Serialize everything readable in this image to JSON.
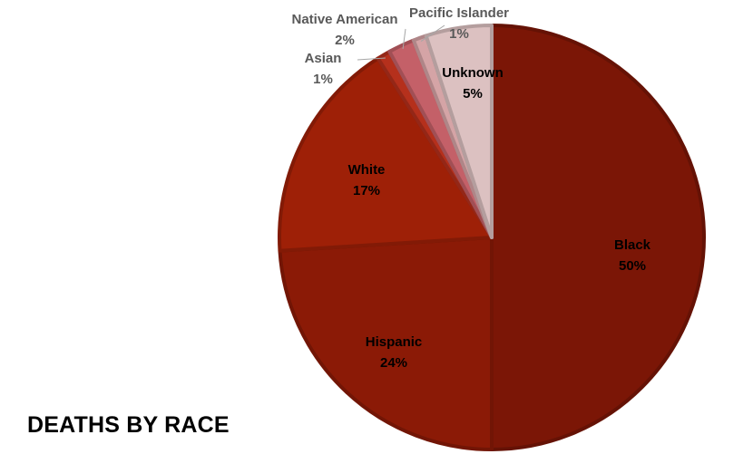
{
  "chart_data": {
    "type": "pie",
    "title": "DEATHS BY RACE",
    "slices": [
      {
        "label": "Black",
        "value": 50,
        "display": "50%",
        "color": "#7b1606"
      },
      {
        "label": "Hispanic",
        "value": 24,
        "display": "24%",
        "color": "#8b1a06"
      },
      {
        "label": "White",
        "value": 17,
        "display": "17%",
        "color": "#9e2007"
      },
      {
        "label": "Asian",
        "value": 1,
        "display": "1%",
        "color": "#b5301c"
      },
      {
        "label": "Native American",
        "value": 2,
        "display": "2%",
        "color": "#c46068"
      },
      {
        "label": "Pacific Islander",
        "value": 1,
        "display": "1%",
        "color": "#d5a4a6"
      },
      {
        "label": "Unknown",
        "value": 5,
        "display": "5%",
        "color": "#dcc1c1"
      }
    ],
    "start_angle": "top",
    "direction": "clockwise",
    "legend": "none"
  }
}
